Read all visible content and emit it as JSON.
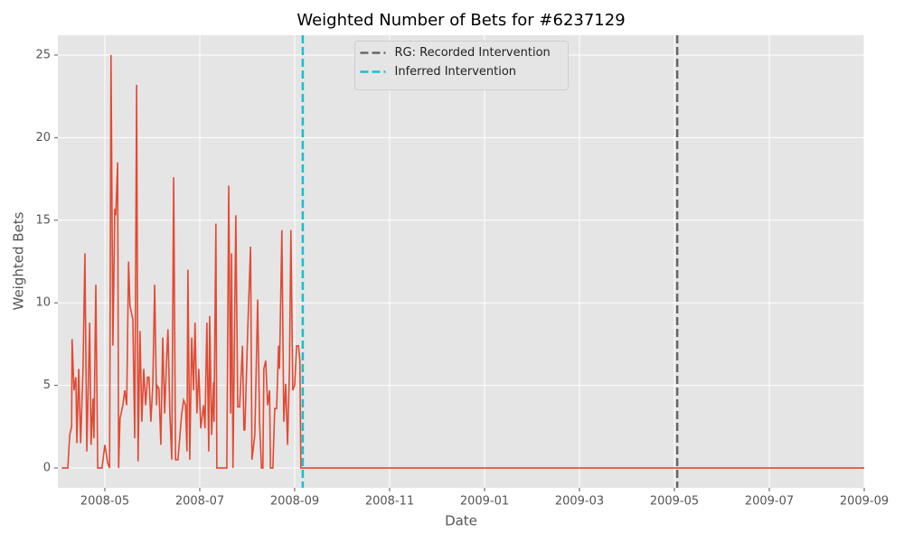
{
  "chart_data": {
    "type": "line",
    "title": "Weighted Number of Bets for #6237129",
    "xlabel": "Date",
    "ylabel": "Weighted Bets",
    "x": [
      4.09,
      4.22,
      4.26,
      4.3,
      4.31,
      4.35,
      4.39,
      4.41,
      4.45,
      4.49,
      4.54,
      4.58,
      4.62,
      4.68,
      4.71,
      4.75,
      4.77,
      4.81,
      4.85,
      4.94,
      5.0,
      5.06,
      5.1,
      5.13,
      5.17,
      5.21,
      5.23,
      5.27,
      5.29,
      5.32,
      5.38,
      5.42,
      5.46,
      5.5,
      5.53,
      5.59,
      5.63,
      5.67,
      5.7,
      5.74,
      5.78,
      5.82,
      5.86,
      5.9,
      5.93,
      5.97,
      6.01,
      6.05,
      6.09,
      6.1,
      6.14,
      6.18,
      6.22,
      6.26,
      6.3,
      6.33,
      6.37,
      6.41,
      6.45,
      6.49,
      6.54,
      6.62,
      6.66,
      6.7,
      6.73,
      6.75,
      6.79,
      6.83,
      6.87,
      6.9,
      6.94,
      6.98,
      7.02,
      7.08,
      7.11,
      7.15,
      7.19,
      7.21,
      7.25,
      7.29,
      7.3,
      7.34,
      7.36,
      7.51,
      7.57,
      7.61,
      7.65,
      7.67,
      7.7,
      7.76,
      7.8,
      7.84,
      7.9,
      7.93,
      7.95,
      8.01,
      8.07,
      8.1,
      8.16,
      8.22,
      8.26,
      8.3,
      8.33,
      8.35,
      8.39,
      8.43,
      8.47,
      8.49,
      8.54,
      8.58,
      8.62,
      8.66,
      8.68,
      8.73,
      8.77,
      8.81,
      8.85,
      8.89,
      8.92,
      8.96,
      9.0,
      9.04,
      9.08,
      9.11,
      9.13,
      21
    ],
    "series": [
      {
        "color": "#e24a33",
        "values": [
          0,
          0,
          2,
          2.5,
          7.8,
          4.7,
          5.5,
          1.5,
          6,
          1.5,
          6,
          13,
          1,
          8.8,
          1.4,
          4.2,
          1.8,
          11.1,
          0,
          0,
          1.4,
          0.3,
          0,
          25,
          7.4,
          15.7,
          15.3,
          18.5,
          0,
          3,
          3.8,
          4.7,
          3.8,
          12.5,
          9.8,
          9,
          1.8,
          23.2,
          0.4,
          8.3,
          2.8,
          6,
          3.8,
          5.5,
          5.5,
          2.8,
          5,
          11.1,
          3.8,
          5,
          4.8,
          1.4,
          7.9,
          3.3,
          6.5,
          8.4,
          3.3,
          0.5,
          17.6,
          0.5,
          0.5,
          3.3,
          4.1,
          3.8,
          1,
          12,
          0.5,
          7.9,
          4.7,
          8.8,
          3.3,
          6,
          2.4,
          3.8,
          2.4,
          8.8,
          1,
          9.2,
          2,
          5.2,
          2.8,
          14.8,
          0,
          0,
          0,
          17.1,
          3.3,
          13,
          0,
          15.3,
          3.7,
          3.7,
          7.4,
          2.3,
          2.3,
          8.3,
          13.4,
          0.5,
          2,
          10.2,
          2.8,
          0,
          0,
          6,
          6.5,
          3.8,
          4.7,
          0,
          0,
          3.6,
          3.6,
          7.4,
          6,
          14.4,
          2.8,
          5.1,
          1.4,
          6,
          14.4,
          4.7,
          5,
          7.4,
          7.4,
          6.5,
          0,
          0
        ]
      }
    ],
    "vlines": [
      {
        "name": "RG: Recorded Intervention",
        "x": 17.06,
        "color": "#666666"
      },
      {
        "name": "Inferred Intervention",
        "x": 9.17,
        "color": "#17becf"
      }
    ],
    "xlim": [
      4.01,
      21
    ],
    "xticks": [
      {
        "value": 5,
        "label": "2008-05"
      },
      {
        "value": 7,
        "label": "2008-07"
      },
      {
        "value": 9,
        "label": "2008-09"
      },
      {
        "value": 11,
        "label": "2008-11"
      },
      {
        "value": 13,
        "label": "2009-01"
      },
      {
        "value": 15,
        "label": "2009-03"
      },
      {
        "value": 17,
        "label": "2009-05"
      },
      {
        "value": 19,
        "label": "2009-07"
      },
      {
        "value": 21,
        "label": "2009-09"
      }
    ],
    "ylim": [
      -1.2,
      26.2
    ],
    "yticks": [
      0,
      5,
      10,
      15,
      20,
      25
    ],
    "grid": true,
    "legend": "upper center"
  }
}
